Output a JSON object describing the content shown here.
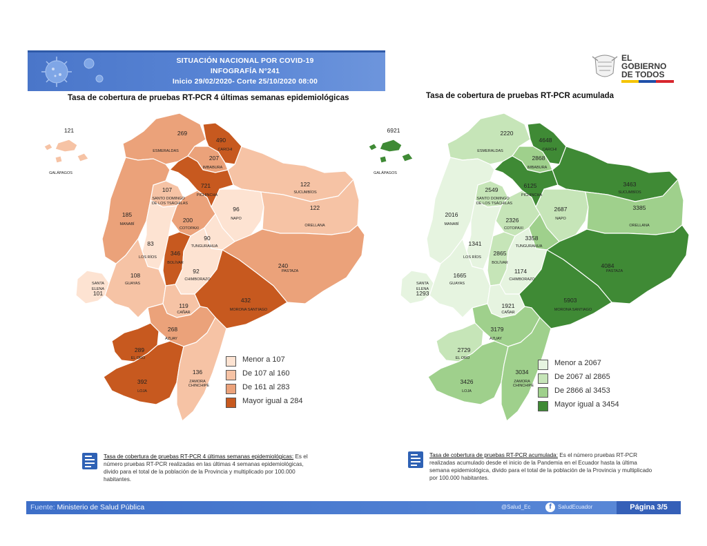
{
  "header": {
    "line1": "SITUACIÓN NACIONAL POR  COVID-19",
    "line2": "INFOGRAFÍA N°241",
    "line3": "Inicio 29/02/2020- Corte 25/10/2020 08:00"
  },
  "logo": {
    "line1": "EL",
    "line2": "GOBIERNO",
    "line3": "DE TODOS"
  },
  "map_left": {
    "title": "Tasa de cobertura de pruebas RT-PCR 4 últimas semanas epidemiológicas",
    "colors": {
      "c1": "#fde3d2",
      "c2": "#f6c3a5",
      "c3": "#eba27a",
      "c4": "#c7591f"
    },
    "legend": [
      "Menor a 107",
      "De 107 al 160",
      "De 161 al 283",
      "Mayor igual a 284"
    ],
    "provinces": [
      {
        "name": "GALÁPAGOS",
        "value": "121",
        "cls": 2
      },
      {
        "name": "ESMERALDAS",
        "value": "269",
        "cls": 3
      },
      {
        "name": "CARCHI",
        "value": "490",
        "cls": 4
      },
      {
        "name": "IMBABURA",
        "value": "207",
        "cls": 3
      },
      {
        "name": "PICHINCHA",
        "value": "721",
        "cls": 4
      },
      {
        "name": "SANTO DOMINGO DE LOS TSÁCHILAS",
        "value": "107",
        "cls": 2
      },
      {
        "name": "SUCUMBÍOS",
        "value": "122",
        "cls": 2
      },
      {
        "name": "NAPO",
        "value": "96",
        "cls": 1
      },
      {
        "name": "ORELLANA",
        "value": "122",
        "cls": 2
      },
      {
        "name": "MANABÍ",
        "value": "185",
        "cls": 3
      },
      {
        "name": "COTOPAXI",
        "value": "200",
        "cls": 3
      },
      {
        "name": "TUNGURAHUA",
        "value": "90",
        "cls": 1
      },
      {
        "name": "LOS RÍOS",
        "value": "83",
        "cls": 1
      },
      {
        "name": "BOLÍVAR",
        "value": "346",
        "cls": 4
      },
      {
        "name": "PASTAZA",
        "value": "240",
        "cls": 3
      },
      {
        "name": "GUAYAS",
        "value": "108",
        "cls": 2
      },
      {
        "name": "CHIMBORAZO",
        "value": "92",
        "cls": 1
      },
      {
        "name": "SANTA ELENA",
        "value": "101",
        "cls": 1
      },
      {
        "name": "CAÑAR",
        "value": "119",
        "cls": 2
      },
      {
        "name": "MORONA SANTIAGO",
        "value": "432",
        "cls": 4
      },
      {
        "name": "AZUAY",
        "value": "268",
        "cls": 3
      },
      {
        "name": "EL ORO",
        "value": "289",
        "cls": 4
      },
      {
        "name": "LOJA",
        "value": "392",
        "cls": 4
      },
      {
        "name": "ZAMORA CHINCHIPE",
        "value": "136",
        "cls": 2
      }
    ],
    "note_title": "Tasa de cobertura de pruebas RT-PCR 4 últimas semanas epidemiológicas:",
    "note_body": "Es el número pruebas RT-PCR realizadas en las últimas 4 semanas epidemiológicas, divido para el total de la población de la Provincia y multiplicado por 100.000 habitantes."
  },
  "map_right": {
    "title": "Tasa de cobertura de pruebas RT-PCR acumulada",
    "colors": {
      "c1": "#e6f4e0",
      "c2": "#c6e5b8",
      "c3": "#9fd08c",
      "c4": "#3f8a35"
    },
    "legend": [
      "Menor a 2067",
      "De 2067 al 2865",
      "De 2866 al 3453",
      "Mayor igual a 3454"
    ],
    "provinces": [
      {
        "name": "GALÁPAGOS",
        "value": "6921",
        "cls": 4
      },
      {
        "name": "ESMERALDAS",
        "value": "2220",
        "cls": 2
      },
      {
        "name": "CARCHI",
        "value": "4648",
        "cls": 4
      },
      {
        "name": "IMBABURA",
        "value": "2868",
        "cls": 3
      },
      {
        "name": "PICHINCHA",
        "value": "6125",
        "cls": 4
      },
      {
        "name": "SANTO DOMINGO DE LOS TSÁCHILAS",
        "value": "2549",
        "cls": 2
      },
      {
        "name": "SUCUMBÍOS",
        "value": "3463",
        "cls": 4
      },
      {
        "name": "NAPO",
        "value": "2687",
        "cls": 2
      },
      {
        "name": "ORELLANA",
        "value": "3385",
        "cls": 3
      },
      {
        "name": "MANABÍ",
        "value": "2016",
        "cls": 1
      },
      {
        "name": "COTOPAXI",
        "value": "2326",
        "cls": 2
      },
      {
        "name": "TUNGURAHUA",
        "value": "3358",
        "cls": 3
      },
      {
        "name": "LOS RÍOS",
        "value": "1341",
        "cls": 1
      },
      {
        "name": "BOLÍVAR",
        "value": "2865",
        "cls": 2
      },
      {
        "name": "PASTAZA",
        "value": "4084",
        "cls": 4
      },
      {
        "name": "GUAYAS",
        "value": "1665",
        "cls": 1
      },
      {
        "name": "CHIMBORAZO",
        "value": "1174",
        "cls": 1
      },
      {
        "name": "SANTA ELENA",
        "value": "1293",
        "cls": 1
      },
      {
        "name": "CAÑAR",
        "value": "1921",
        "cls": 1
      },
      {
        "name": "MORONA SANTIAGO",
        "value": "5903",
        "cls": 4
      },
      {
        "name": "AZUAY",
        "value": "3179",
        "cls": 3
      },
      {
        "name": "EL ORO",
        "value": "2729",
        "cls": 2
      },
      {
        "name": "LOJA",
        "value": "3426",
        "cls": 3
      },
      {
        "name": "ZAMORA CHINCHIPE",
        "value": "3034",
        "cls": 3
      }
    ],
    "note_title": "Tasa de cobertura de pruebas RT-PCR acumulada:",
    "note_body": " Es el número pruebas RT-PCR realizadas acumulado desde el inicio de la Pandemia en el Ecuador hasta la última semana epidemiológica, divido para el total de la población de la Provincia y multiplicado por 100.000 habitantes."
  },
  "footer": {
    "source_label": "Fuente:",
    "source": "Ministerio de Salud Pública",
    "twitter": "@Salud_Ec",
    "facebook": "SaludEcuador",
    "page": "Página 3/5"
  }
}
